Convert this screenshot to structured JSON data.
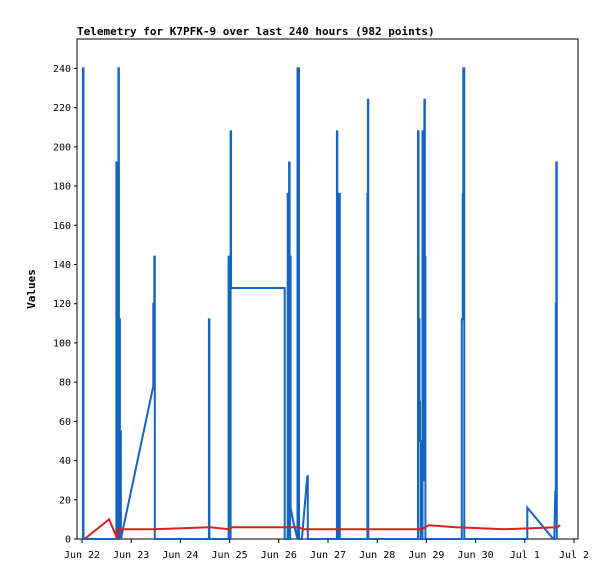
{
  "chart_data": {
    "type": "line",
    "title": "Telemetry for K7PFK-9 over last 240 hours (982 points)",
    "ylabel": "Values",
    "xlabel": "",
    "ylim": [
      0,
      255
    ],
    "xlim": [
      "Jun 22",
      "Jul 2"
    ],
    "grid": false,
    "legend": "none",
    "yticks": [
      0,
      20,
      40,
      60,
      80,
      100,
      120,
      140,
      160,
      180,
      200,
      220,
      240
    ],
    "xticks": [
      {
        "day": 0,
        "label": "Jun 22"
      },
      {
        "day": 1,
        "label": "Jun 23"
      },
      {
        "day": 2,
        "label": "Jun 24"
      },
      {
        "day": 3,
        "label": "Jun 25"
      },
      {
        "day": 4,
        "label": "Jun 26"
      },
      {
        "day": 5,
        "label": "Jun 27"
      },
      {
        "day": 6,
        "label": "Jun 28"
      },
      {
        "day": 7,
        "label": "Jun 29"
      },
      {
        "day": 8,
        "label": "Jun 30"
      },
      {
        "day": 9,
        "label": "Jul 1"
      },
      {
        "day": 10,
        "label": "Jul 2"
      }
    ],
    "series": [
      {
        "color": "#1464c0",
        "points": [
          [
            0.02,
            0
          ],
          [
            0.02,
            240
          ],
          [
            0.03,
            240
          ],
          [
            0.03,
            0
          ],
          [
            0.7,
            0
          ],
          [
            0.7,
            192
          ],
          [
            0.72,
            192
          ],
          [
            0.72,
            0
          ],
          [
            0.74,
            0
          ],
          [
            0.74,
            240
          ],
          [
            0.75,
            240
          ],
          [
            0.75,
            0
          ],
          [
            0.76,
            0
          ],
          [
            0.76,
            112
          ],
          [
            0.77,
            112
          ],
          [
            0.77,
            0
          ],
          [
            0.78,
            0
          ],
          [
            0.78,
            55
          ],
          [
            0.79,
            55
          ],
          [
            0.79,
            0
          ],
          [
            1.45,
            78
          ],
          [
            1.45,
            120
          ],
          [
            1.47,
            120
          ],
          [
            1.47,
            144
          ],
          [
            1.48,
            144
          ],
          [
            1.48,
            0
          ],
          [
            2.58,
            0
          ],
          [
            2.58,
            112
          ],
          [
            2.59,
            112
          ],
          [
            2.59,
            0
          ],
          [
            2.98,
            0
          ],
          [
            2.98,
            144
          ],
          [
            2.99,
            144
          ],
          [
            2.99,
            0
          ],
          [
            3.02,
            0
          ],
          [
            3.02,
            208
          ],
          [
            3.03,
            208
          ],
          [
            3.03,
            128
          ],
          [
            4.12,
            128
          ],
          [
            4.12,
            0
          ],
          [
            4.18,
            0
          ],
          [
            4.18,
            176
          ],
          [
            4.19,
            176
          ],
          [
            4.19,
            0
          ],
          [
            4.21,
            0
          ],
          [
            4.21,
            192
          ],
          [
            4.22,
            192
          ],
          [
            4.22,
            0
          ],
          [
            4.23,
            0
          ],
          [
            4.23,
            144
          ],
          [
            4.24,
            144
          ],
          [
            4.24,
            16
          ],
          [
            4.3,
            8
          ],
          [
            4.38,
            0
          ],
          [
            4.38,
            240
          ],
          [
            4.41,
            240
          ],
          [
            4.41,
            0
          ],
          [
            4.47,
            0
          ],
          [
            4.58,
            32
          ],
          [
            4.59,
            32
          ],
          [
            4.59,
            0
          ],
          [
            5.18,
            0
          ],
          [
            5.18,
            208
          ],
          [
            5.19,
            208
          ],
          [
            5.19,
            0
          ],
          [
            5.22,
            0
          ],
          [
            5.22,
            160
          ],
          [
            5.23,
            160
          ],
          [
            5.23,
            176
          ],
          [
            5.24,
            176
          ],
          [
            5.24,
            0
          ],
          [
            5.8,
            0
          ],
          [
            5.8,
            176
          ],
          [
            5.81,
            176
          ],
          [
            5.81,
            224
          ],
          [
            5.82,
            224
          ],
          [
            5.82,
            0
          ],
          [
            6.83,
            0
          ],
          [
            6.83,
            208
          ],
          [
            6.84,
            208
          ],
          [
            6.84,
            112
          ],
          [
            6.86,
            112
          ],
          [
            6.86,
            70
          ],
          [
            6.87,
            70
          ],
          [
            6.87,
            50
          ],
          [
            6.88,
            50
          ],
          [
            6.88,
            0
          ],
          [
            6.92,
            0
          ],
          [
            6.92,
            208
          ],
          [
            6.93,
            208
          ],
          [
            6.93,
            30
          ],
          [
            6.94,
            30
          ],
          [
            6.96,
            224
          ],
          [
            6.97,
            224
          ],
          [
            6.97,
            144
          ],
          [
            6.98,
            144
          ],
          [
            6.98,
            0
          ],
          [
            7.72,
            0
          ],
          [
            7.72,
            112
          ],
          [
            7.74,
            112
          ],
          [
            7.74,
            176
          ],
          [
            7.75,
            176
          ],
          [
            7.75,
            240
          ],
          [
            7.77,
            240
          ],
          [
            7.77,
            0
          ],
          [
            9.05,
            0
          ],
          [
            9.05,
            16
          ],
          [
            9.58,
            0
          ],
          [
            9.6,
            0
          ],
          [
            9.62,
            24
          ],
          [
            9.63,
            24
          ],
          [
            9.63,
            120
          ],
          [
            9.64,
            120
          ],
          [
            9.64,
            192
          ],
          [
            9.65,
            192
          ],
          [
            9.65,
            0
          ]
        ]
      },
      {
        "color": "#dc1e1e",
        "points": [
          [
            0.05,
            0
          ],
          [
            0.55,
            10
          ],
          [
            0.72,
            0
          ],
          [
            0.73,
            5
          ],
          [
            1.45,
            5
          ],
          [
            2.6,
            6
          ],
          [
            3.0,
            5
          ],
          [
            3.05,
            6
          ],
          [
            4.4,
            6
          ],
          [
            4.5,
            5
          ],
          [
            5.2,
            5
          ],
          [
            5.8,
            5
          ],
          [
            6.9,
            5
          ],
          [
            7.05,
            7
          ],
          [
            7.6,
            6
          ],
          [
            8.6,
            5
          ],
          [
            9.65,
            6
          ],
          [
            9.72,
            7
          ]
        ]
      }
    ]
  }
}
